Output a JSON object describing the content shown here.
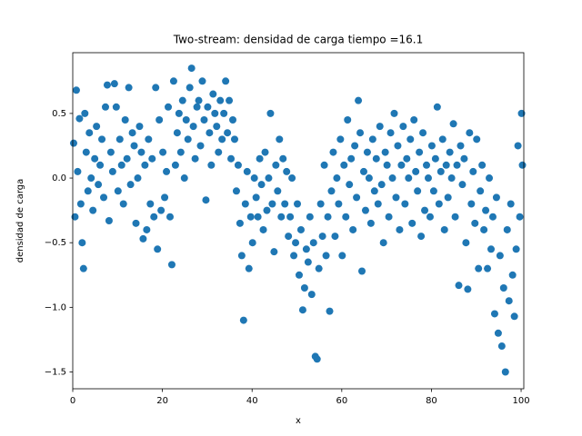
{
  "chart_data": {
    "type": "scatter",
    "title": "Two-stream: densidad de carga  tiempo =16.1",
    "xlabel": "x",
    "ylabel": "densidad de carga",
    "color": "#1f77b4",
    "xlim": [
      0,
      100.6
    ],
    "ylim": [
      -1.63,
      0.97
    ],
    "xticks": [
      0,
      20,
      40,
      60,
      80,
      100
    ],
    "yticks": [
      {
        "value": -1.5,
        "label": "−1.5"
      },
      {
        "value": -1.0,
        "label": "−1.0"
      },
      {
        "value": -0.5,
        "label": "−0.5"
      },
      {
        "value": 0,
        "label": "0.0"
      },
      0.5
    ],
    "x": [
      0.2,
      0.5,
      0.8,
      1.1,
      1.5,
      1.8,
      2.1,
      2.4,
      2.7,
      3.0,
      3.4,
      3.7,
      4.1,
      4.5,
      4.9,
      5.3,
      5.7,
      6.1,
      6.5,
      6.9,
      7.3,
      7.7,
      8.1,
      8.5,
      8.9,
      9.3,
      9.7,
      10.1,
      10.5,
      10.9,
      11.3,
      11.7,
      12.1,
      12.5,
      12.9,
      13.3,
      13.7,
      14.1,
      14.5,
      14.9,
      15.3,
      15.7,
      16.1,
      16.5,
      16.9,
      17.3,
      17.7,
      18.1,
      18.5,
      18.9,
      19.3,
      19.7,
      20.1,
      20.5,
      20.9,
      21.3,
      21.7,
      22.1,
      22.5,
      22.9,
      23.3,
      23.7,
      24.1,
      24.5,
      24.9,
      25.3,
      25.7,
      26.1,
      26.5,
      26.9,
      27.3,
      27.7,
      28.1,
      28.5,
      28.9,
      29.3,
      29.7,
      30.1,
      30.5,
      30.9,
      31.3,
      31.7,
      32.1,
      32.5,
      32.9,
      33.3,
      33.7,
      34.1,
      34.5,
      34.9,
      35.3,
      35.7,
      36.1,
      36.5,
      36.9,
      37.3,
      37.7,
      38.1,
      38.5,
      38.9,
      39.3,
      39.7,
      40.1,
      40.5,
      40.9,
      41.3,
      41.7,
      42.1,
      42.5,
      42.9,
      43.3,
      43.7,
      44.1,
      44.5,
      44.9,
      45.3,
      45.7,
      46.1,
      46.5,
      46.9,
      47.3,
      47.7,
      48.1,
      48.5,
      48.9,
      49.3,
      49.7,
      50.1,
      50.5,
      50.9,
      51.3,
      51.7,
      52.1,
      52.5,
      52.9,
      53.3,
      53.7,
      54.1,
      54.5,
      54.9,
      55.3,
      55.7,
      56.1,
      56.5,
      56.9,
      57.3,
      57.7,
      58.1,
      58.5,
      58.9,
      59.3,
      59.7,
      60.1,
      60.5,
      60.9,
      61.3,
      61.7,
      62.1,
      62.5,
      62.9,
      63.3,
      63.7,
      64.1,
      64.5,
      64.9,
      65.3,
      65.7,
      66.1,
      66.5,
      66.9,
      67.3,
      67.7,
      68.1,
      68.5,
      68.9,
      69.3,
      69.7,
      70.1,
      70.5,
      70.9,
      71.3,
      71.7,
      72.1,
      72.5,
      72.9,
      73.3,
      73.7,
      74.1,
      74.5,
      74.9,
      75.3,
      75.7,
      76.1,
      76.5,
      76.9,
      77.3,
      77.7,
      78.1,
      78.5,
      78.9,
      79.3,
      79.7,
      80.1,
      80.5,
      80.9,
      81.3,
      81.7,
      82.1,
      82.5,
      82.9,
      83.3,
      83.7,
      84.1,
      84.5,
      84.9,
      85.3,
      85.7,
      86.1,
      86.5,
      86.9,
      87.3,
      87.7,
      88.1,
      88.5,
      88.9,
      89.3,
      89.7,
      90.1,
      90.5,
      90.9,
      91.3,
      91.7,
      92.1,
      92.5,
      92.9,
      93.3,
      93.7,
      94.1,
      94.5,
      94.9,
      95.3,
      95.7,
      96.1,
      96.5,
      96.9,
      97.3,
      97.7,
      98.1,
      98.5,
      98.9,
      99.3,
      99.7,
      100.1,
      100.3
    ],
    "values": [
      0.27,
      -0.3,
      0.68,
      0.05,
      0.46,
      -0.2,
      -0.5,
      -0.7,
      0.5,
      0.2,
      -0.1,
      0.35,
      0.0,
      -0.25,
      0.15,
      0.4,
      -0.05,
      0.1,
      0.3,
      -0.15,
      0.55,
      0.72,
      -0.33,
      0.2,
      0.05,
      0.73,
      0.55,
      -0.1,
      0.3,
      0.1,
      -0.2,
      0.45,
      0.15,
      0.7,
      -0.05,
      0.35,
      0.25,
      -0.35,
      0.0,
      0.4,
      0.2,
      -0.47,
      0.1,
      -0.4,
      0.3,
      -0.2,
      0.15,
      -0.3,
      0.7,
      -0.55,
      0.45,
      -0.25,
      0.2,
      -0.15,
      0.05,
      0.55,
      -0.3,
      -0.67,
      0.75,
      0.1,
      0.35,
      0.5,
      0.2,
      0.6,
      0.0,
      0.45,
      0.3,
      0.7,
      0.85,
      0.4,
      0.15,
      0.55,
      0.6,
      0.25,
      0.75,
      0.45,
      -0.17,
      0.55,
      0.35,
      0.1,
      0.65,
      0.5,
      0.4,
      0.2,
      0.6,
      0.3,
      0.5,
      0.75,
      0.35,
      0.6,
      0.15,
      0.45,
      0.3,
      -0.1,
      0.1,
      -0.35,
      -0.6,
      -1.1,
      -0.2,
      0.05,
      -0.7,
      -0.3,
      -0.5,
      0.0,
      -0.15,
      -0.3,
      0.15,
      -0.05,
      -0.4,
      0.2,
      -0.25,
      0.0,
      0.5,
      -0.2,
      -0.57,
      0.1,
      -0.1,
      0.3,
      -0.3,
      0.15,
      -0.2,
      0.05,
      -0.45,
      -0.3,
      0.0,
      -0.6,
      -0.5,
      -0.2,
      -0.75,
      -0.4,
      -1.02,
      -0.85,
      -0.55,
      -0.65,
      -0.3,
      -0.9,
      -0.5,
      -1.38,
      -1.4,
      -0.7,
      -0.2,
      -0.45,
      0.1,
      -0.6,
      -0.3,
      -1.03,
      -0.1,
      0.2,
      -0.45,
      0.0,
      -0.2,
      0.3,
      -0.6,
      0.1,
      -0.3,
      0.45,
      -0.05,
      0.15,
      -0.4,
      0.25,
      -0.15,
      0.6,
      0.35,
      -0.72,
      0.05,
      -0.25,
      0.2,
      0.0,
      -0.35,
      0.3,
      -0.1,
      0.15,
      -0.2,
      0.4,
      -0.05,
      -0.5,
      0.2,
      0.1,
      -0.3,
      0.35,
      0.0,
      0.5,
      -0.15,
      0.25,
      -0.4,
      0.1,
      0.4,
      -0.2,
      0.15,
      0.0,
      0.3,
      -0.35,
      0.45,
      0.05,
      -0.1,
      0.2,
      -0.45,
      0.35,
      -0.25,
      0.1,
      0.0,
      -0.3,
      0.25,
      -0.1,
      0.15,
      0.55,
      -0.2,
      0.05,
      0.3,
      -0.4,
      0.1,
      -0.15,
      0.2,
      0.0,
      0.42,
      -0.3,
      0.1,
      -0.83,
      0.25,
      -0.05,
      0.15,
      -0.5,
      -0.86,
      0.35,
      -0.2,
      0.05,
      -0.35,
      0.3,
      -0.7,
      -0.1,
      0.1,
      -0.4,
      -0.25,
      -0.7,
      0.0,
      -0.55,
      -0.3,
      -1.05,
      -0.15,
      -1.2,
      -0.6,
      -1.3,
      -0.85,
      -1.5,
      -0.4,
      -0.95,
      -0.2,
      -0.75,
      -1.07,
      -0.55,
      0.25,
      -0.3,
      0.5,
      0.1
    ]
  }
}
